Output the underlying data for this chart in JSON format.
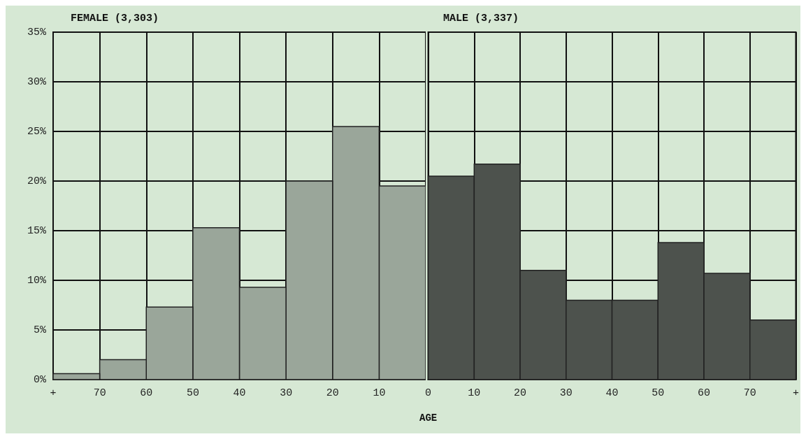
{
  "chart_data": [
    {
      "type": "histogram",
      "title": "FEMALE (3,303)",
      "bins": [
        0,
        10,
        20,
        30,
        40,
        50,
        60,
        70,
        80
      ],
      "values": [
        19.5,
        25.5,
        20,
        9.3,
        15.3,
        7.3,
        2,
        0.6
      ],
      "color": "#9aa69a",
      "xlim": [
        80,
        0
      ],
      "xticks": [
        {
          "value": 80,
          "label": "+"
        },
        70,
        60,
        50,
        40,
        30,
        20,
        10
      ],
      "ylim": [
        0,
        35
      ],
      "yticks": [
        {
          "value": 0,
          "label": "0%"
        },
        {
          "value": 5,
          "label": "5%"
        },
        {
          "value": 10,
          "label": "10%"
        },
        {
          "value": 15,
          "label": "15%"
        },
        {
          "value": 20,
          "label": "20%"
        },
        {
          "value": 25,
          "label": "25%"
        },
        {
          "value": 30,
          "label": "30%"
        },
        {
          "value": 35,
          "label": "35%"
        }
      ],
      "grid": true
    },
    {
      "type": "histogram",
      "title": "MALE (3,337)",
      "xlabel": "AGE",
      "bins": [
        0,
        10,
        20,
        30,
        40,
        50,
        60,
        70,
        80
      ],
      "values": [
        20.5,
        21.7,
        11,
        8,
        8,
        13.8,
        10.7,
        6
      ],
      "color": "#4d524d",
      "xlim": [
        0,
        80
      ],
      "xticks": [
        0,
        10,
        20,
        30,
        40,
        50,
        60,
        70,
        {
          "value": 80,
          "label": "+"
        }
      ],
      "ylim": [
        0,
        35
      ],
      "yticks": [
        0,
        5,
        10,
        15,
        20,
        25,
        30,
        35
      ],
      "tick_labels": "x",
      "grid": true
    }
  ]
}
